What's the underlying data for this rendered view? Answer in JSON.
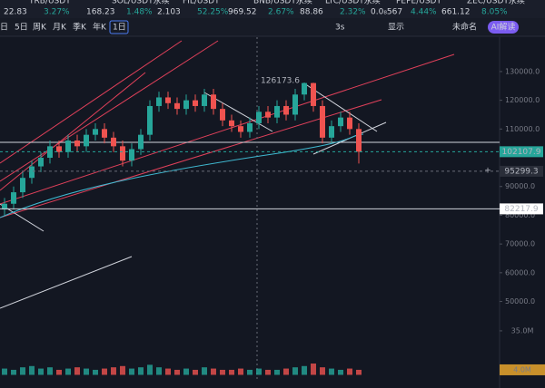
{
  "tickers": [
    {
      "name": "TRB/USDT",
      "price": "22.83",
      "change": "3.27%"
    },
    {
      "name": "SOL/USDT永续",
      "price": "168.23",
      "change": "1.48%"
    },
    {
      "name": "FIL/USDT",
      "price": "2.103",
      "change": "52.25%"
    },
    {
      "name": "BNB/USDT永续",
      "price": "969.52",
      "change": "2.67%"
    },
    {
      "name": "LTC/USDT永续",
      "price": "88.86",
      "change": "2.32%"
    },
    {
      "name": "PEPE/USDT",
      "price": "0.0₈567",
      "change": "4.44%"
    },
    {
      "name": "ZEC/USDT永续",
      "price": "661.12",
      "change": "8.05%"
    }
  ],
  "toolbar": {
    "periods": [
      "日",
      "5日",
      "周K",
      "月K",
      "季K",
      "年K",
      "1日"
    ],
    "refresh": "3s",
    "display": "显示",
    "layout": "未命名",
    "ai": "AI解读"
  },
  "chart_data": {
    "type": "candlestick",
    "colors": {
      "up": "#26a69a",
      "down": "#ef5350"
    },
    "open": [
      82000,
      84000,
      88000,
      93000,
      97000,
      100000,
      104000,
      102000,
      106000,
      104000,
      108000,
      110000,
      107000,
      104000,
      99000,
      103000,
      108000,
      118000,
      121000,
      119000,
      117000,
      120000,
      118000,
      122000,
      117000,
      113000,
      111000,
      109000,
      112000,
      116000,
      114000,
      118000,
      115000,
      122000,
      126000,
      118000,
      107000,
      111000,
      114000,
      110000
    ],
    "high": [
      86000,
      90000,
      95000,
      99000,
      102000,
      106000,
      106000,
      108000,
      108000,
      110000,
      112000,
      112000,
      109000,
      106000,
      105000,
      110000,
      120000,
      123000,
      123000,
      121000,
      122000,
      122000,
      124000,
      124000,
      119000,
      115000,
      113000,
      114000,
      118000,
      118000,
      120000,
      120000,
      124000,
      126173.6,
      126100,
      120000,
      113000,
      116000,
      116000,
      112000
    ],
    "low": [
      80000,
      82000,
      86000,
      91000,
      95000,
      98000,
      100000,
      100000,
      102000,
      102000,
      106000,
      105000,
      102000,
      97000,
      97000,
      101000,
      106000,
      116000,
      117000,
      115000,
      115000,
      116000,
      116000,
      115000,
      111000,
      109000,
      107000,
      107000,
      110000,
      112000,
      112000,
      113000,
      113000,
      120000,
      116000,
      105000,
      105000,
      109000,
      108000,
      98000
    ],
    "close": [
      84000,
      88000,
      93000,
      97000,
      100000,
      104000,
      102000,
      106000,
      104000,
      108000,
      110000,
      107000,
      104000,
      99000,
      103000,
      108000,
      118000,
      121000,
      119000,
      117000,
      120000,
      118000,
      122000,
      117000,
      113000,
      111000,
      109000,
      112000,
      116000,
      114000,
      118000,
      115000,
      122000,
      126000,
      118000,
      107000,
      111000,
      114000,
      110000,
      102107.9
    ],
    "volume": [
      5,
      4,
      6,
      7,
      5,
      6,
      4,
      5,
      6,
      5,
      4,
      5,
      6,
      7,
      5,
      6,
      8,
      6,
      5,
      4,
      5,
      4,
      6,
      5,
      4,
      4,
      5,
      4,
      5,
      4,
      4,
      5,
      6,
      7,
      9,
      6,
      5,
      4,
      5,
      4
    ],
    "ylim": [
      30300,
      140700
    ],
    "yticks": [
      {
        "value": 50000,
        "label": "50000.0"
      },
      {
        "value": 60000,
        "label": "60000.0"
      },
      {
        "value": 70000,
        "label": "70000.0"
      },
      {
        "value": 80000,
        "label": "80000.0"
      },
      {
        "value": 90000,
        "label": "90000.0"
      },
      {
        "value": 110000,
        "label": "110000.0"
      },
      {
        "value": 120000,
        "label": "120000.0"
      },
      {
        "value": 130000,
        "label": "130000.0"
      }
    ],
    "price_labels": [
      102107.9,
      95299.3,
      82217.9
    ],
    "peak_label": 126173.6,
    "volume_ylim": [
      0,
      40
    ],
    "volume_ticks": [
      {
        "value": 35,
        "label": "35.0M"
      },
      {
        "value": 4,
        "label": "4.0M"
      }
    ]
  }
}
